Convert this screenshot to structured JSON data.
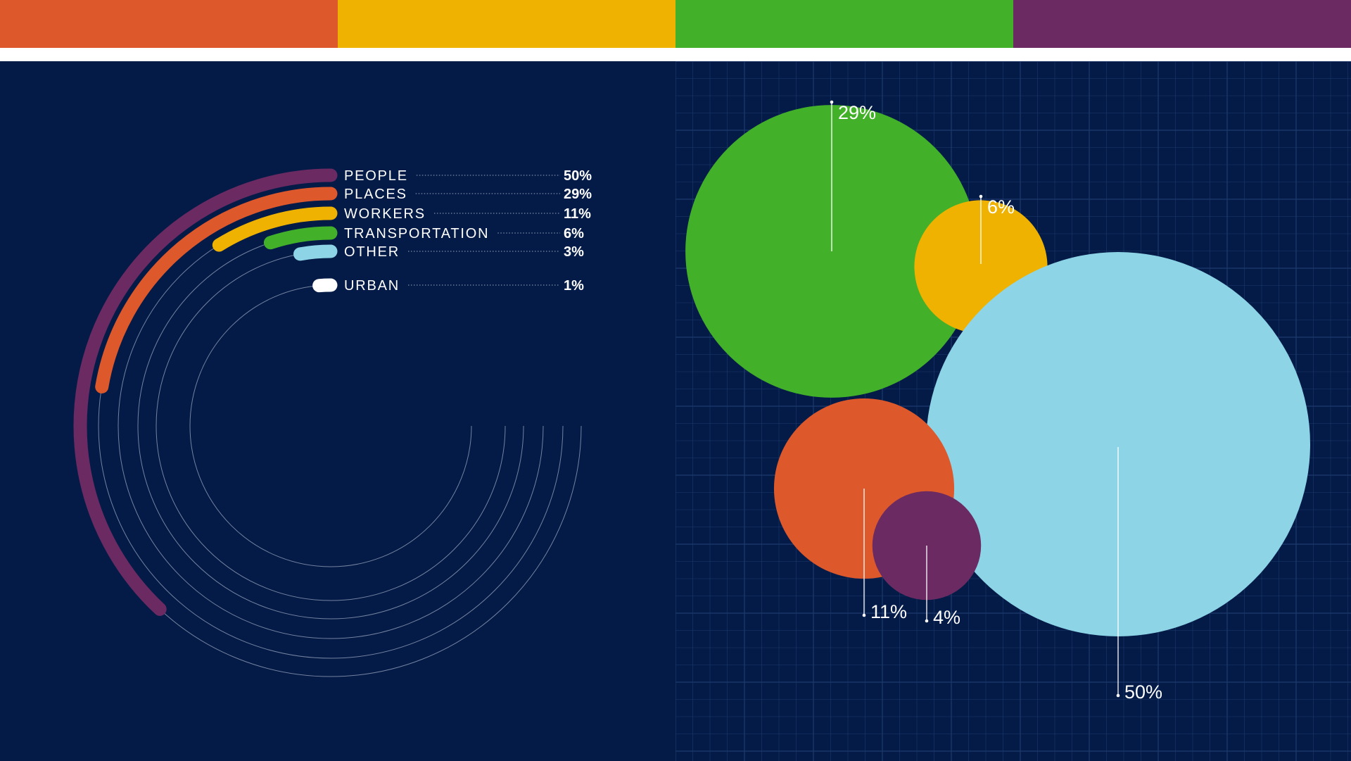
{
  "colors": {
    "background": "#041b47",
    "grid": "#1c3a6e",
    "guide": "#9aa6bd",
    "text": "#ffffff"
  },
  "top_bar": [
    {
      "name": "orange-stripe",
      "color": "#dd582b"
    },
    {
      "name": "yellow-stripe",
      "color": "#efb200"
    },
    {
      "name": "green-stripe",
      "color": "#43b02a"
    },
    {
      "name": "purple-stripe",
      "color": "#6b2a62"
    }
  ],
  "chart_data": [
    {
      "type": "radial-bar",
      "legend": "top-right",
      "grid": false,
      "max": 100,
      "series": [
        {
          "label": "PEOPLE",
          "value": 50,
          "value_label": "50%",
          "color": "#6b2a62"
        },
        {
          "label": "PLACES",
          "value": 29,
          "value_label": "29%",
          "color": "#dd582b"
        },
        {
          "label": "WORKERS",
          "value": 11,
          "value_label": "11%",
          "color": "#efb200"
        },
        {
          "label": "TRANSPORTATION",
          "value": 6,
          "value_label": "6%",
          "color": "#43b02a"
        },
        {
          "label": "OTHER",
          "value": 3,
          "value_label": "3%",
          "color": "#8dd4e6"
        },
        {
          "label": "URBAN",
          "value": 1,
          "value_label": "1%",
          "color": "#ffffff"
        }
      ]
    },
    {
      "type": "bubble",
      "grid": true,
      "bubbles": [
        {
          "value": 29,
          "label": "29%",
          "color": "#43b02a"
        },
        {
          "value": 6,
          "label": "6%",
          "color": "#efb200"
        },
        {
          "value": 50,
          "label": "50%",
          "color": "#8dd4e6"
        },
        {
          "value": 11,
          "label": "11%",
          "color": "#dd582b"
        },
        {
          "value": 4,
          "label": "4%",
          "color": "#6b2a62"
        }
      ]
    }
  ]
}
